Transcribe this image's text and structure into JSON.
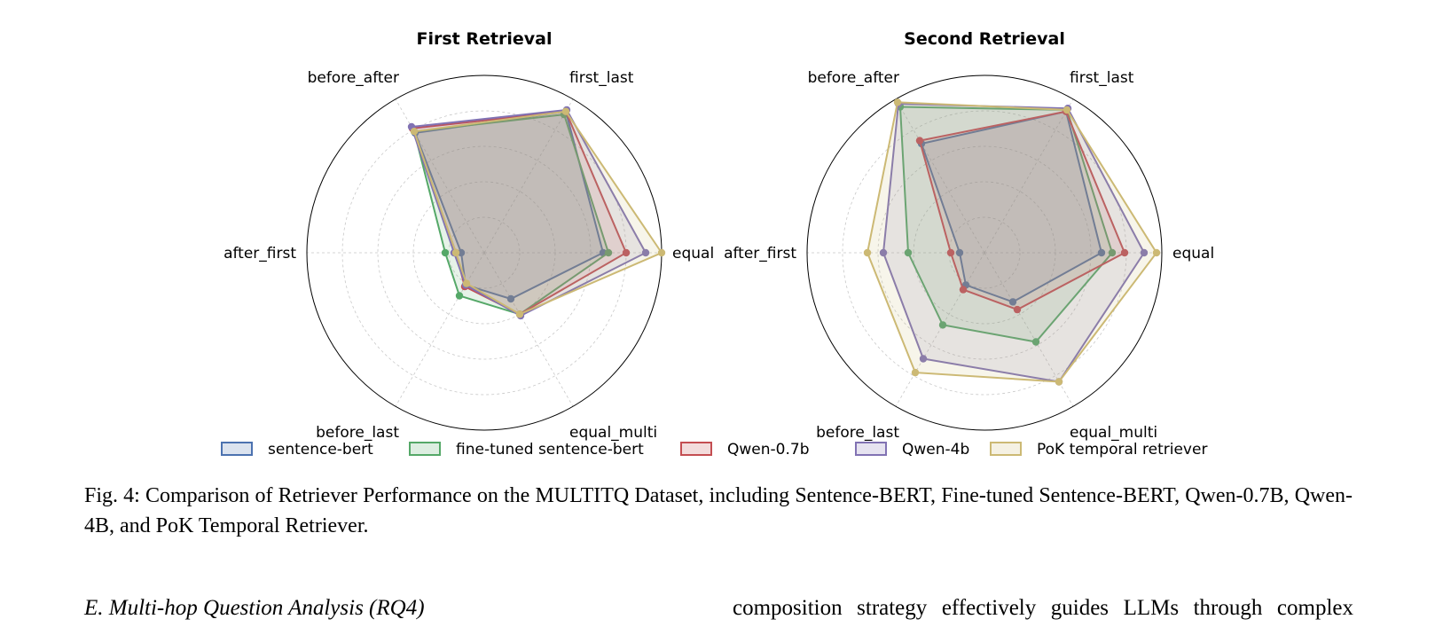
{
  "chart_data": [
    {
      "type": "radar",
      "title": "First Retrieval",
      "categories": [
        "first_last",
        "equal",
        "equal_multi",
        "before_last",
        "after_first",
        "before_after"
      ],
      "rlim": [
        0,
        1
      ],
      "grid": true,
      "series": [
        {
          "name": "sentence-bert",
          "values": [
            0.92,
            0.67,
            0.3,
            0.21,
            0.13,
            0.78
          ]
        },
        {
          "name": "fine-tuned sentence-bert",
          "values": [
            0.9,
            0.7,
            0.4,
            0.28,
            0.22,
            0.79
          ]
        },
        {
          "name": "Qwen-0.7b",
          "values": [
            0.92,
            0.8,
            0.4,
            0.22,
            0.16,
            0.81
          ]
        },
        {
          "name": "Qwen-4b",
          "values": [
            0.93,
            0.91,
            0.41,
            0.21,
            0.17,
            0.82
          ]
        },
        {
          "name": "PoK temporal retriever",
          "values": [
            0.92,
            1.0,
            0.4,
            0.2,
            0.16,
            0.79
          ]
        }
      ]
    },
    {
      "type": "radar",
      "title": "Second Retrieval",
      "categories": [
        "first_last",
        "equal",
        "equal_multi",
        "before_last",
        "after_first",
        "before_after"
      ],
      "rlim": [
        0,
        1
      ],
      "grid": true,
      "series": [
        {
          "name": "sentence-bert",
          "values": [
            0.92,
            0.66,
            0.32,
            0.21,
            0.14,
            0.71
          ]
        },
        {
          "name": "fine-tuned sentence-bert",
          "values": [
            0.93,
            0.72,
            0.58,
            0.47,
            0.43,
            0.95
          ]
        },
        {
          "name": "Qwen-0.7b",
          "values": [
            0.92,
            0.79,
            0.37,
            0.24,
            0.19,
            0.73
          ]
        },
        {
          "name": "Qwen-4b",
          "values": [
            0.94,
            0.9,
            0.84,
            0.69,
            0.57,
            0.97
          ]
        },
        {
          "name": "PoK temporal retriever",
          "values": [
            0.93,
            0.97,
            0.84,
            0.78,
            0.66,
            0.98
          ]
        }
      ]
    }
  ],
  "legend": {
    "placement": "bottom",
    "items": [
      {
        "label": "sentence-bert",
        "color": "#4c72b0"
      },
      {
        "label": "fine-tuned sentence-bert",
        "color": "#55a868"
      },
      {
        "label": "Qwen-0.7b",
        "color": "#c44e52"
      },
      {
        "label": "Qwen-4b",
        "color": "#8172b3"
      },
      {
        "label": "PoK temporal retriever",
        "color": "#ccb974"
      }
    ]
  },
  "caption": "Fig. 4: Comparison of Retriever Performance on the MULTITQ Dataset, including Sentence-BERT, Fine-tuned Sentence-BERT, Qwen-0.7B, Qwen-4B, and PoK Temporal Retriever.",
  "section_heading": "E.  Multi-hop Question Analysis (RQ4)",
  "body_fragment": "composition strategy effectively guides LLMs through complex"
}
